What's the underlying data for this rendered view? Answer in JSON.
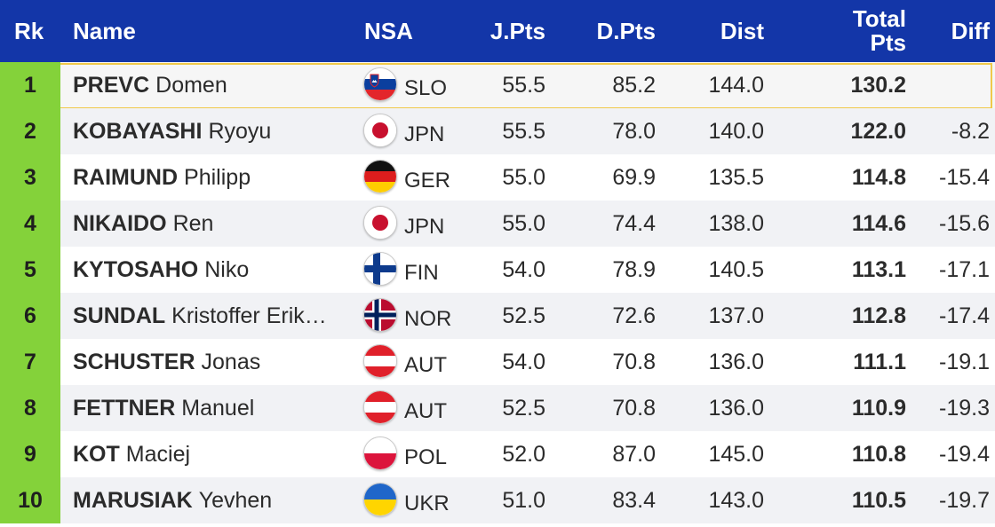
{
  "header": {
    "rk": "Rk",
    "name": "Name",
    "nsa": "NSA",
    "jpts": "J.Pts",
    "dpts": "D.Pts",
    "dist": "Dist",
    "total_line1": "Total",
    "total_line2": "Pts",
    "diff": "Diff"
  },
  "colors": {
    "header_bg": "#1336a8",
    "rank_bg": "#84d23a",
    "highlight_border": "#f0c94a"
  },
  "rows": [
    {
      "rk": "1",
      "last": "PREVC",
      "first": "Domen",
      "nsa": "SLO",
      "flag": "slovenia-flag-icon",
      "jpts": "55.5",
      "dpts": "85.2",
      "dist": "144.0",
      "total": "130.2",
      "diff": ""
    },
    {
      "rk": "2",
      "last": "KOBAYASHI",
      "first": "Ryoyu",
      "nsa": "JPN",
      "flag": "japan-flag-icon",
      "jpts": "55.5",
      "dpts": "78.0",
      "dist": "140.0",
      "total": "122.0",
      "diff": "-8.2"
    },
    {
      "rk": "3",
      "last": "RAIMUND",
      "first": "Philipp",
      "nsa": "GER",
      "flag": "germany-flag-icon",
      "jpts": "55.0",
      "dpts": "69.9",
      "dist": "135.5",
      "total": "114.8",
      "diff": "-15.4"
    },
    {
      "rk": "4",
      "last": "NIKAIDO",
      "first": "Ren",
      "nsa": "JPN",
      "flag": "japan-flag-icon",
      "jpts": "55.0",
      "dpts": "74.4",
      "dist": "138.0",
      "total": "114.6",
      "diff": "-15.6"
    },
    {
      "rk": "5",
      "last": "KYTOSAHO",
      "first": "Niko",
      "nsa": "FIN",
      "flag": "finland-flag-icon",
      "jpts": "54.0",
      "dpts": "78.9",
      "dist": "140.5",
      "total": "113.1",
      "diff": "-17.1"
    },
    {
      "rk": "6",
      "last": "SUNDAL",
      "first": "Kristoffer Erik…",
      "nsa": "NOR",
      "flag": "norway-flag-icon",
      "jpts": "52.5",
      "dpts": "72.6",
      "dist": "137.0",
      "total": "112.8",
      "diff": "-17.4"
    },
    {
      "rk": "7",
      "last": "SCHUSTER",
      "first": "Jonas",
      "nsa": "AUT",
      "flag": "austria-flag-icon",
      "jpts": "54.0",
      "dpts": "70.8",
      "dist": "136.0",
      "total": "111.1",
      "diff": "-19.1"
    },
    {
      "rk": "8",
      "last": "FETTNER",
      "first": "Manuel",
      "nsa": "AUT",
      "flag": "austria-flag-icon",
      "jpts": "52.5",
      "dpts": "70.8",
      "dist": "136.0",
      "total": "110.9",
      "diff": "-19.3"
    },
    {
      "rk": "9",
      "last": "KOT",
      "first": "Maciej",
      "nsa": "POL",
      "flag": "poland-flag-icon",
      "jpts": "52.0",
      "dpts": "87.0",
      "dist": "145.0",
      "total": "110.8",
      "diff": "-19.4"
    },
    {
      "rk": "10",
      "last": "MARUSIAK",
      "first": "Yevhen",
      "nsa": "UKR",
      "flag": "ukraine-flag-icon",
      "jpts": "51.0",
      "dpts": "83.4",
      "dist": "143.0",
      "total": "110.5",
      "diff": "-19.7"
    }
  ]
}
